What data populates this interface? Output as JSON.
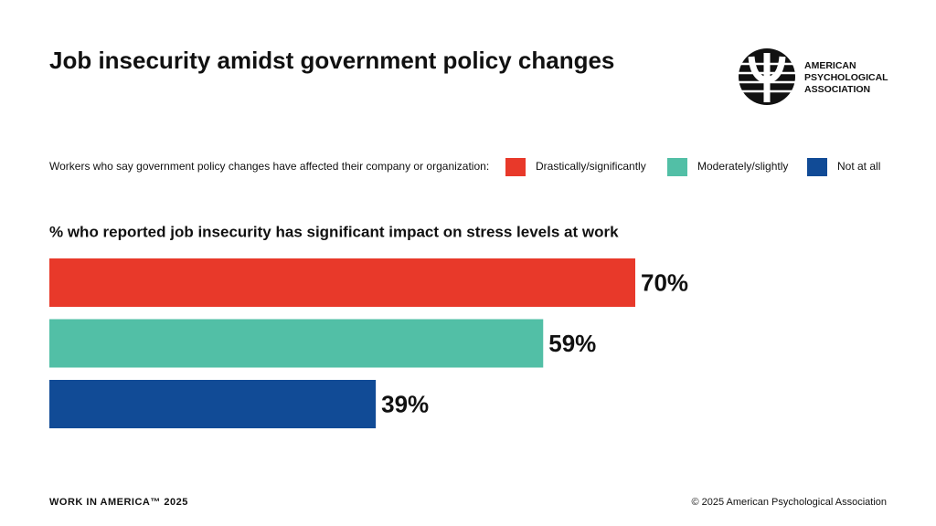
{
  "chart_data": {
    "type": "bar",
    "title": "Job insecurity amidst government policy changes",
    "legend_title": "Workers who say government policy changes have affected their company or organization:",
    "subtitle": "% who reported job insecurity has significant impact on stress levels at work",
    "series": [
      {
        "name": "Drastically/significantly",
        "color": "#e8392a",
        "values": [
          70
        ],
        "value_labels": [
          "70%"
        ]
      },
      {
        "name": "Moderately/slightly",
        "color": "#52bfa6",
        "values": [
          59
        ],
        "value_labels": [
          "59%"
        ]
      },
      {
        "name": "Not at all",
        "color": "#114b96",
        "values": [
          39
        ],
        "value_labels": [
          "39%"
        ]
      }
    ]
  },
  "logo": {
    "lines": [
      "AMERICAN",
      "PSYCHOLOGICAL",
      "ASSOCIATION"
    ]
  },
  "footer": {
    "left": "WORK IN AMERICA™ 2025",
    "right": "© 2025 American Psychological Association"
  }
}
